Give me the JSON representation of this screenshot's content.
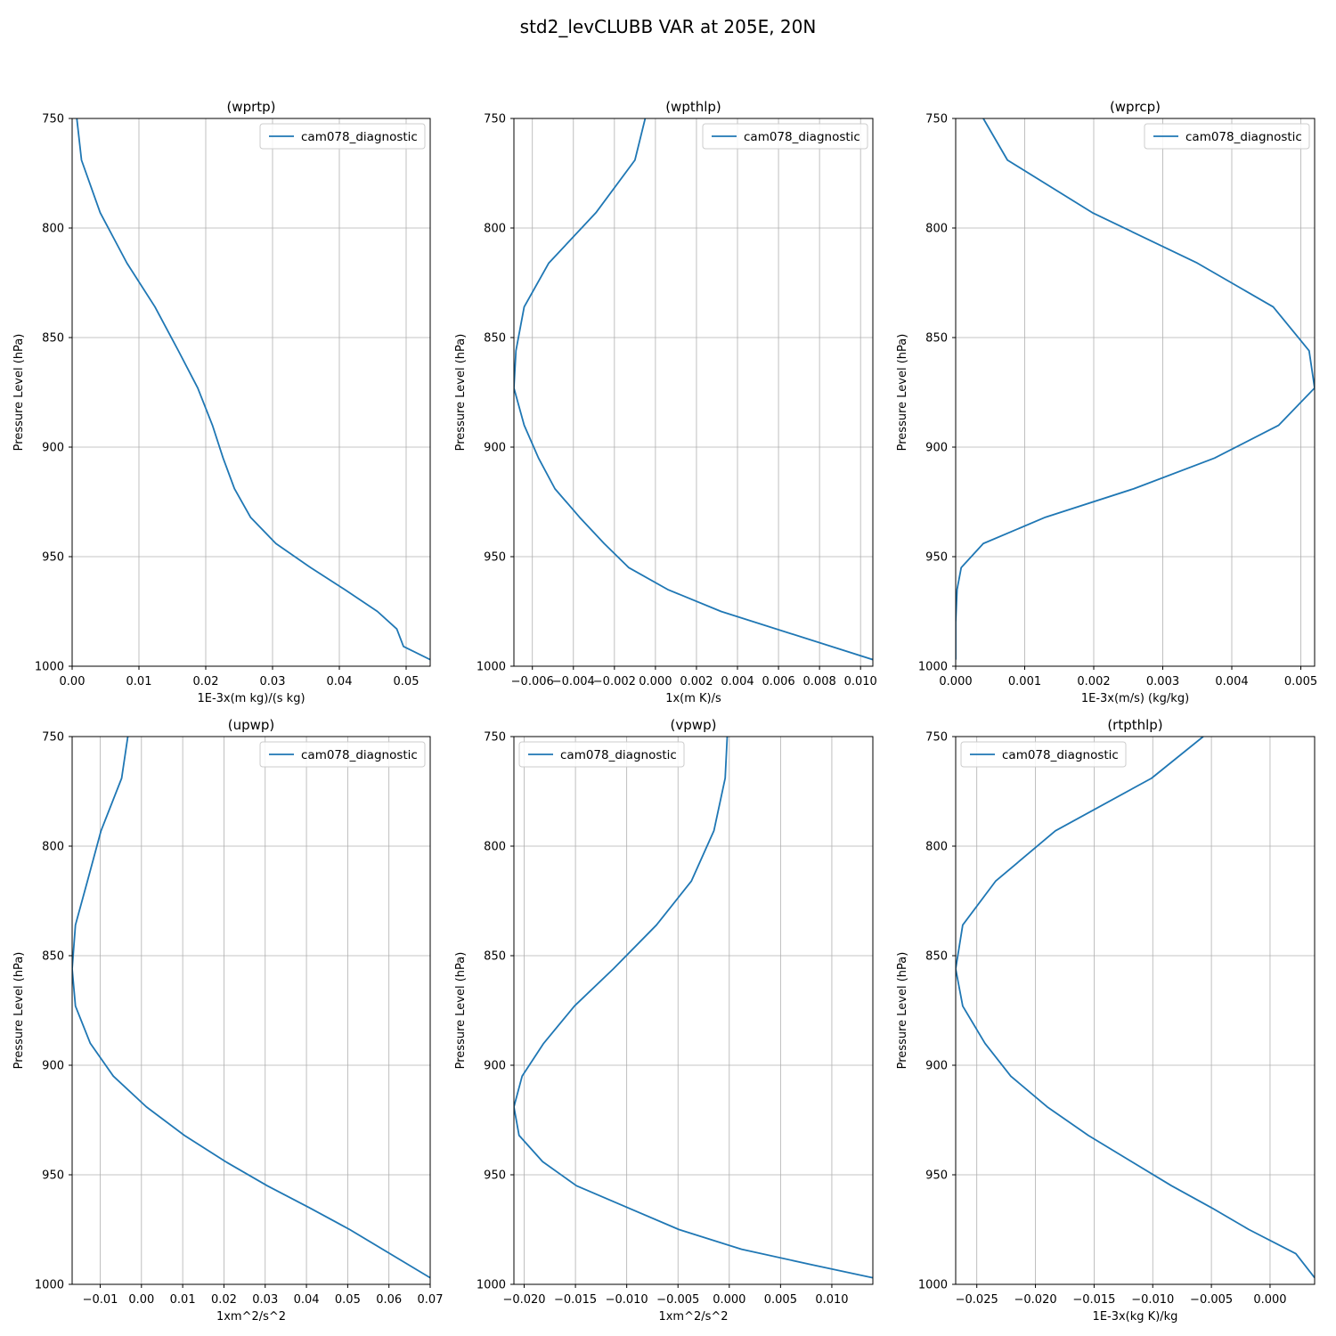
{
  "figure": {
    "suptitle": "std2_levCLUBB VAR at 205E, 20N"
  },
  "colors": {
    "line": "#1f77b4",
    "grid": "#b0b0b0",
    "frame": "#000000",
    "legend_border": "#cccccc"
  },
  "chart_data": [
    {
      "type": "line",
      "title": "(wprtp)",
      "xlabel": "1E-3x(m kg)/(s kg)",
      "ylabel": "Pressure Level (hPa)",
      "xlim": [
        0,
        0.0536
      ],
      "ylim": [
        1000,
        750
      ],
      "y_inverted": true,
      "grid": true,
      "legend_position": "upper right",
      "xticks": [
        0,
        0.01,
        0.02,
        0.03,
        0.04,
        0.05
      ],
      "xticklabels": [
        "0.00",
        "0.01",
        "0.02",
        "0.03",
        "0.04",
        "0.05"
      ],
      "yticks": [
        750,
        800,
        850,
        900,
        950,
        1000
      ],
      "yticklabels": [
        "750",
        "800",
        "850",
        "900",
        "950",
        "1000"
      ],
      "series": [
        {
          "name": "cam078_diagnostic",
          "x": [
            0.0007,
            0.0014,
            0.0042,
            0.0082,
            0.0124,
            0.0159,
            0.0188,
            0.021,
            0.0226,
            0.0243,
            0.0267,
            0.0305,
            0.0357,
            0.0408,
            0.0457,
            0.0486,
            0.0496,
            0.0536
          ],
          "y": [
            750,
            769,
            793,
            816,
            836,
            856,
            873,
            890,
            905,
            919,
            932,
            944,
            955,
            965,
            975,
            983,
            991,
            997
          ]
        }
      ]
    },
    {
      "type": "line",
      "title": "(wpthlp)",
      "xlabel": "1x(m K)/s",
      "ylabel": "Pressure Level (hPa)",
      "xlim": [
        -0.0069,
        0.0106
      ],
      "ylim": [
        1000,
        750
      ],
      "y_inverted": true,
      "grid": true,
      "legend_position": "upper right",
      "xticks": [
        -0.006,
        -0.004,
        -0.002,
        0,
        0.002,
        0.004,
        0.006,
        0.008,
        0.01
      ],
      "xticklabels": [
        "−0.006",
        "−0.004",
        "−0.002",
        "0.000",
        "0.002",
        "0.004",
        "0.006",
        "0.008",
        "0.010"
      ],
      "yticks": [
        750,
        800,
        850,
        900,
        950,
        1000
      ],
      "yticklabels": [
        "750",
        "800",
        "850",
        "900",
        "950",
        "1000"
      ],
      "series": [
        {
          "name": "cam078_diagnostic",
          "x": [
            -0.0005,
            -0.001,
            -0.0029,
            -0.0052,
            -0.0064,
            -0.0068,
            -0.0069,
            -0.0064,
            -0.0057,
            -0.0049,
            -0.0037,
            -0.0025,
            -0.0013,
            0.0006,
            0.0032,
            0.0106
          ],
          "y": [
            750,
            769,
            793,
            816,
            836,
            856,
            873,
            890,
            905,
            919,
            932,
            944,
            955,
            965,
            975,
            997
          ]
        }
      ]
    },
    {
      "type": "line",
      "title": "(wprcp)",
      "xlabel": "1E-3x(m/s) (kg/kg)",
      "ylabel": "Pressure Level (hPa)",
      "xlim": [
        0,
        0.0052
      ],
      "ylim": [
        1000,
        750
      ],
      "y_inverted": true,
      "grid": true,
      "legend_position": "upper right",
      "xticks": [
        0,
        0.001,
        0.002,
        0.003,
        0.004,
        0.005
      ],
      "xticklabels": [
        "0.000",
        "0.001",
        "0.002",
        "0.003",
        "0.004",
        "0.005"
      ],
      "yticks": [
        750,
        800,
        850,
        900,
        950,
        1000
      ],
      "yticklabels": [
        "750",
        "800",
        "850",
        "900",
        "950",
        "1000"
      ],
      "series": [
        {
          "name": "cam078_diagnostic",
          "x": [
            0.0004,
            0.00075,
            0.00198,
            0.0035,
            0.0046,
            0.00512,
            0.0052,
            0.00468,
            0.00375,
            0.00258,
            0.0013,
            0.0004,
            8e-05,
            2e-05,
            0.0,
            0.0
          ],
          "y": [
            750,
            769,
            793,
            816,
            836,
            856,
            873,
            890,
            905,
            919,
            932,
            944,
            955,
            965,
            980,
            997
          ]
        }
      ]
    },
    {
      "type": "line",
      "title": "(upwp)",
      "xlabel": "1xm^2/s^2",
      "ylabel": "Pressure Level (hPa)",
      "xlim": [
        -0.0168,
        0.07
      ],
      "ylim": [
        1000,
        750
      ],
      "y_inverted": true,
      "grid": true,
      "legend_position": "upper right",
      "xticks": [
        -0.01,
        0,
        0.01,
        0.02,
        0.03,
        0.04,
        0.05,
        0.06,
        0.07
      ],
      "xticklabels": [
        "−0.01",
        "0.00",
        "0.01",
        "0.02",
        "0.03",
        "0.04",
        "0.05",
        "0.06",
        "0.07"
      ],
      "yticks": [
        750,
        800,
        850,
        900,
        950,
        1000
      ],
      "yticklabels": [
        "750",
        "800",
        "850",
        "900",
        "950",
        "1000"
      ],
      "series": [
        {
          "name": "cam078_diagnostic",
          "x": [
            -0.0033,
            -0.0048,
            -0.0098,
            -0.0131,
            -0.016,
            -0.0168,
            -0.016,
            -0.0124,
            -0.0068,
            0.0012,
            0.0104,
            0.0204,
            0.0305,
            0.0407,
            0.0505,
            0.07
          ],
          "y": [
            750,
            769,
            793,
            816,
            836,
            856,
            873,
            890,
            905,
            919,
            932,
            944,
            955,
            965,
            975,
            997
          ]
        }
      ]
    },
    {
      "type": "line",
      "title": "(vpwp)",
      "xlabel": "1xm^2/s^2",
      "ylabel": "Pressure Level (hPa)",
      "xlim": [
        -0.021,
        0.014
      ],
      "ylim": [
        1000,
        750
      ],
      "y_inverted": true,
      "grid": true,
      "legend_position": "upper left",
      "xticks": [
        -0.02,
        -0.015,
        -0.01,
        -0.005,
        0,
        0.005,
        0.01
      ],
      "xticklabels": [
        "−0.020",
        "−0.015",
        "−0.010",
        "−0.005",
        "0.000",
        "0.005",
        "0.010"
      ],
      "yticks": [
        750,
        800,
        850,
        900,
        950,
        1000
      ],
      "yticklabels": [
        "750",
        "800",
        "850",
        "900",
        "950",
        "1000"
      ],
      "series": [
        {
          "name": "cam078_diagnostic",
          "x": [
            -0.0002,
            -0.0004,
            -0.0015,
            -0.0037,
            -0.0071,
            -0.0113,
            -0.0151,
            -0.0181,
            -0.0202,
            -0.021,
            -0.0205,
            -0.0182,
            -0.0149,
            -0.0099,
            -0.0049,
            0.0012,
            0.008,
            0.014
          ],
          "y": [
            750,
            769,
            793,
            816,
            836,
            856,
            873,
            890,
            905,
            919,
            932,
            944,
            955,
            965,
            975,
            984,
            991,
            997
          ]
        }
      ]
    },
    {
      "type": "line",
      "title": "(rtpthlp)",
      "xlabel": "1E-3x(kg K)/kg",
      "ylabel": "Pressure Level (hPa)",
      "xlim": [
        -0.0268,
        0.0038
      ],
      "ylim": [
        1000,
        750
      ],
      "y_inverted": true,
      "grid": true,
      "legend_position": "upper left",
      "xticks": [
        -0.025,
        -0.02,
        -0.015,
        -0.01,
        -0.005,
        0
      ],
      "xticklabels": [
        "−0.025",
        "−0.020",
        "−0.015",
        "−0.010",
        "−0.005",
        "0.000"
      ],
      "yticks": [
        750,
        800,
        850,
        900,
        950,
        1000
      ],
      "yticklabels": [
        "750",
        "800",
        "850",
        "900",
        "950",
        "1000"
      ],
      "series": [
        {
          "name": "cam078_diagnostic",
          "x": [
            -0.0057,
            -0.0101,
            -0.0183,
            -0.0234,
            -0.0262,
            -0.0268,
            -0.0262,
            -0.0243,
            -0.0221,
            -0.019,
            -0.0155,
            -0.0118,
            -0.0084,
            -0.005,
            -0.0018,
            0.0022,
            0.0038
          ],
          "y": [
            750,
            769,
            793,
            816,
            836,
            856,
            873,
            890,
            905,
            919,
            932,
            944,
            955,
            965,
            975,
            986,
            997
          ]
        }
      ]
    }
  ]
}
